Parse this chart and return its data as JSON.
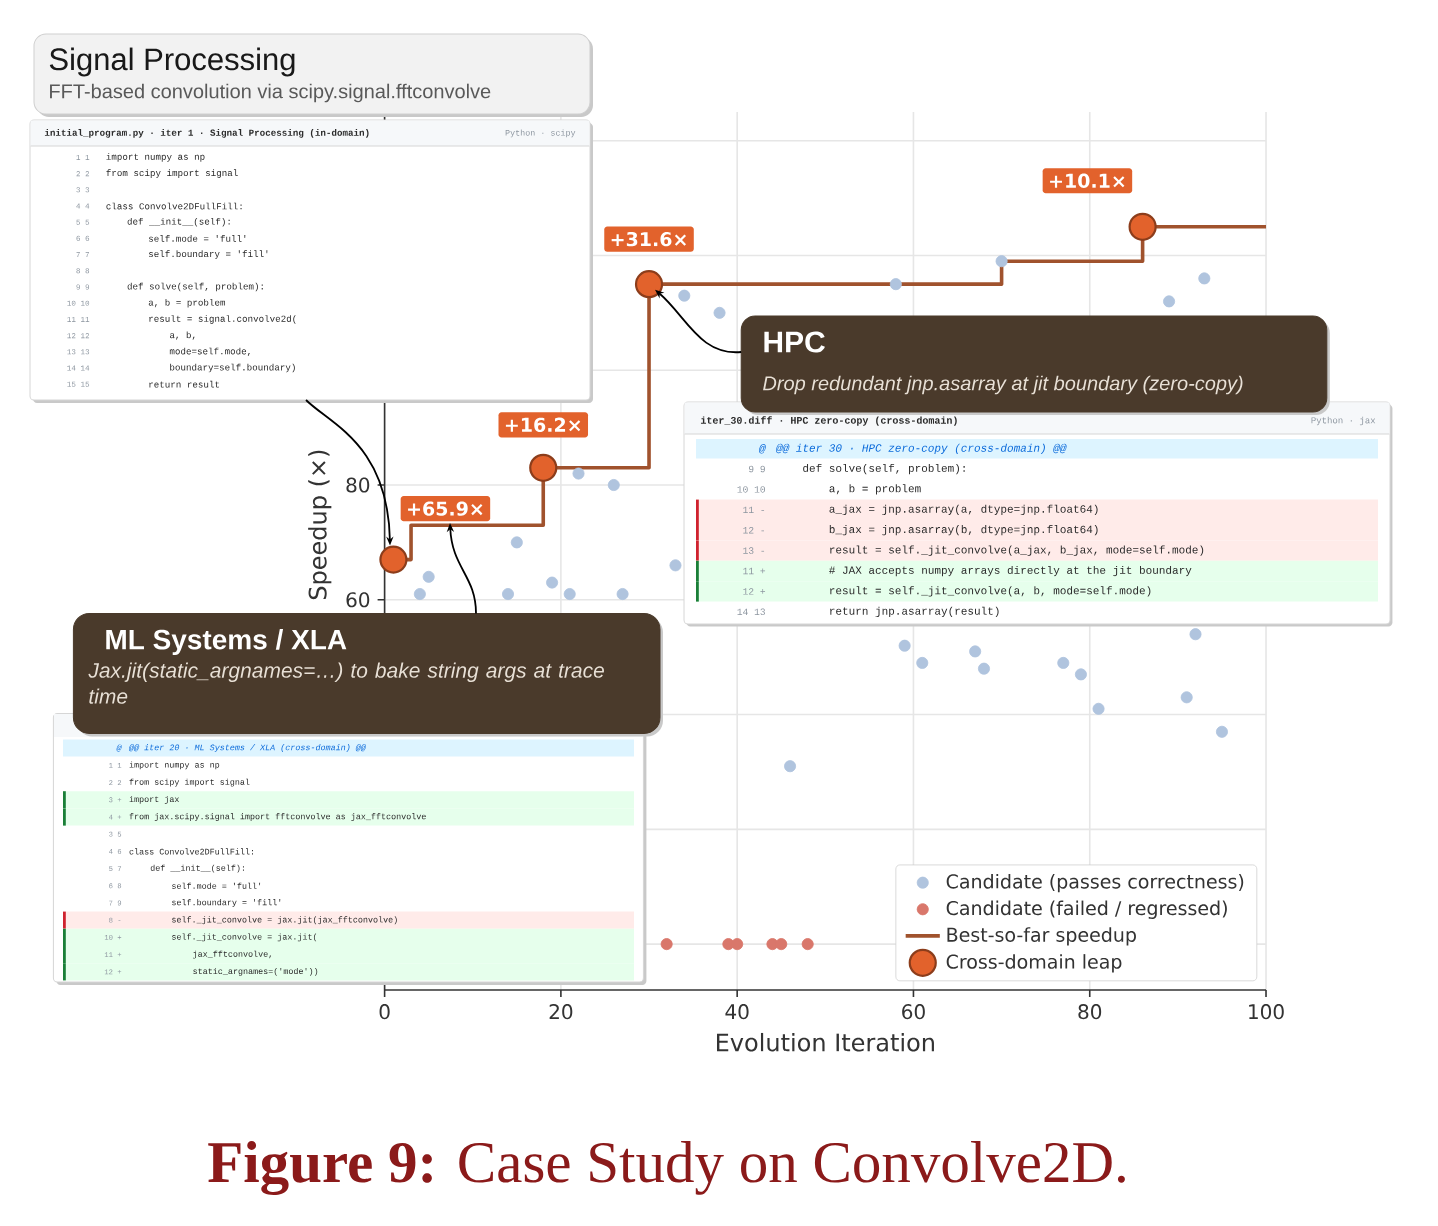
{
  "chart_data": {
    "type": "scatter",
    "xlabel": "Evolution Iteration",
    "ylabel": "Speedup (×)",
    "xlim": [
      0,
      100
    ],
    "ylim": [
      -8,
      145
    ],
    "xticks": [
      0,
      20,
      40,
      60,
      80,
      100
    ],
    "yticks": [
      {
        "value": 0,
        "label": null
      },
      {
        "value": 20,
        "label": null
      },
      {
        "value": 40,
        "label": null
      },
      60,
      80,
      {
        "value": 100,
        "label": null
      },
      {
        "value": 120,
        "label": null
      },
      {
        "value": 140,
        "label": null
      }
    ],
    "grid": true,
    "legend": "bottom right",
    "marker": "circle",
    "series": [
      {
        "name": "Candidate (passes correctness)",
        "color": "#b0c4de",
        "x": [
          4,
          5,
          14,
          15,
          19,
          21,
          22,
          26,
          27,
          33,
          34,
          38,
          46,
          58,
          59,
          61,
          67,
          68,
          70,
          77,
          79,
          81,
          89,
          91,
          92,
          93,
          95
        ],
        "values": [
          61,
          64,
          61,
          70,
          63,
          61,
          82,
          80,
          61,
          66,
          113,
          110,
          31,
          115,
          52,
          49,
          51,
          48,
          119,
          49,
          47,
          41,
          112,
          43,
          54,
          116,
          37
        ]
      },
      {
        "name": "Candidate (failed / regressed)",
        "color": "#d9776b",
        "x": [
          32,
          39,
          40,
          44,
          45,
          48
        ],
        "values": [
          0,
          0,
          0,
          0,
          0,
          0
        ]
      },
      {
        "name": "Best-so-far speedup",
        "type": "step",
        "color": "#a0522d",
        "marker": "none",
        "x": [
          1,
          3,
          18,
          30,
          70,
          86,
          100
        ],
        "values": [
          67,
          73,
          83,
          115,
          119,
          125,
          125
        ]
      },
      {
        "name": "Cross-domain leap",
        "color": "#e2622c",
        "x": [
          1,
          18,
          30,
          86
        ],
        "values": [
          67,
          83,
          115,
          125
        ]
      }
    ],
    "annotations": [
      {
        "text": "+65.9×",
        "x": 1,
        "y": 67
      },
      {
        "text": "+16.2×",
        "x": 18,
        "y": 83
      },
      {
        "text": "+31.6×",
        "x": 30,
        "y": 115
      },
      {
        "text": "+10.1×",
        "x": 86,
        "y": 125
      },
      "Signal Processing",
      "FFT-based convolution via scipy.signal.fftconvolve",
      "initial_program.py · iter 1 · Signal Processing (in-domain)",
      "Python · scipy",
      "1 1",
      "import numpy as np",
      "2 2",
      "from scipy import signal",
      "3 3",
      "4 4",
      "class Convolve2DFullFill:",
      "5 5",
      "def __init__(self):",
      "6 6",
      "self.mode = 'full'",
      "7 7",
      "self.boundary = 'fill'",
      "8 8",
      "9 9",
      "def solve(self, problem):",
      "10 10",
      "a, b = problem",
      "11 11",
      "result = signal.convolve2d(",
      "12 12",
      "a, b,",
      "13 13",
      "mode=self.mode,",
      "14 14",
      "boundary=self.boundary)",
      "15 15",
      "return result",
      {
        "text": "HPC",
        "x": 30,
        "y": 115
      },
      "Drop redundant jnp.asarray at jit boundary (zero-copy)",
      "iter_30.diff · HPC zero-copy (cross-domain)",
      "Python · jax",
      "@",
      "@@ iter 30 · HPC zero-copy (cross-domain) @@",
      "9 9",
      "def solve(self, problem):",
      "10 10",
      "a, b = problem",
      "11 -",
      "a_jax = jnp.asarray(a, dtype=jnp.float64)",
      "12 -",
      "b_jax = jnp.asarray(b, dtype=jnp.float64)",
      "13 -",
      "result = self._jit_convolve(a_jax, b_jax, mode=self.mode)",
      "11 +",
      "# JAX accepts numpy arrays directly at the jit boundary",
      "12 +",
      "result = self._jit_convolve(a, b, mode=self.mode)",
      "14 13",
      "return jnp.asarray(result)",
      "ML Systems / XLA",
      "Jax.jit(static_argnames=…) to bake string args at trace time",
      "@",
      "@@ iter 20 · ML Systems / XLA (cross-domain) @@",
      "1 1",
      "import numpy as np",
      "2 2",
      "from scipy import signal",
      "3 +",
      "import jax",
      "4 +",
      "from jax.scipy.signal import fftconvolve as jax_fftconvolve",
      "3 5",
      "4 6",
      "class Convolve2DFullFill:",
      "5 7",
      "def __init__(self):",
      "6 8",
      "self.mode = 'full'",
      "7 9",
      "self.boundary = 'fill'",
      "8 -",
      "self._jit_convolve = jax.jit(jax_fftconvolve)",
      "10 +",
      "self._jit_convolve = jax.jit(",
      "11 +",
      "jax_fftconvolve,",
      "12 +",
      "static_argnames=('mode'))",
      "**Figure 9:** Case Study on Convolve2D."
    ]
  }
}
